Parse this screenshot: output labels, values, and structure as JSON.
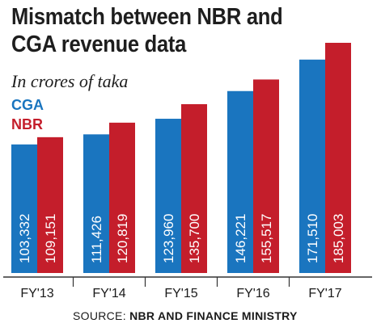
{
  "chart_data": {
    "type": "bar",
    "title": "Mismatch between NBR and CGA revenue data",
    "subtitle": "In crores of taka",
    "categories": [
      "FY'13",
      "FY'14",
      "FY'15",
      "FY'16",
      "FY'17"
    ],
    "series": [
      {
        "name": "CGA",
        "color": "#1a75bf",
        "values": [
          103332,
          111426,
          123960,
          146221,
          171510
        ],
        "labels": [
          "103,332",
          "111,426",
          "123,960",
          "146,221",
          "171,510"
        ]
      },
      {
        "name": "NBR",
        "color": "#c41e2b",
        "values": [
          109151,
          120819,
          135700,
          155517,
          185003
        ],
        "labels": [
          "109,151",
          "120,819",
          "135,700",
          "155,517",
          "185,003"
        ]
      }
    ],
    "legend_position": "top-left",
    "grid": false,
    "source_prefix": "SOURCE:",
    "source_text": "NBR AND FINANCE MINISTRY"
  }
}
